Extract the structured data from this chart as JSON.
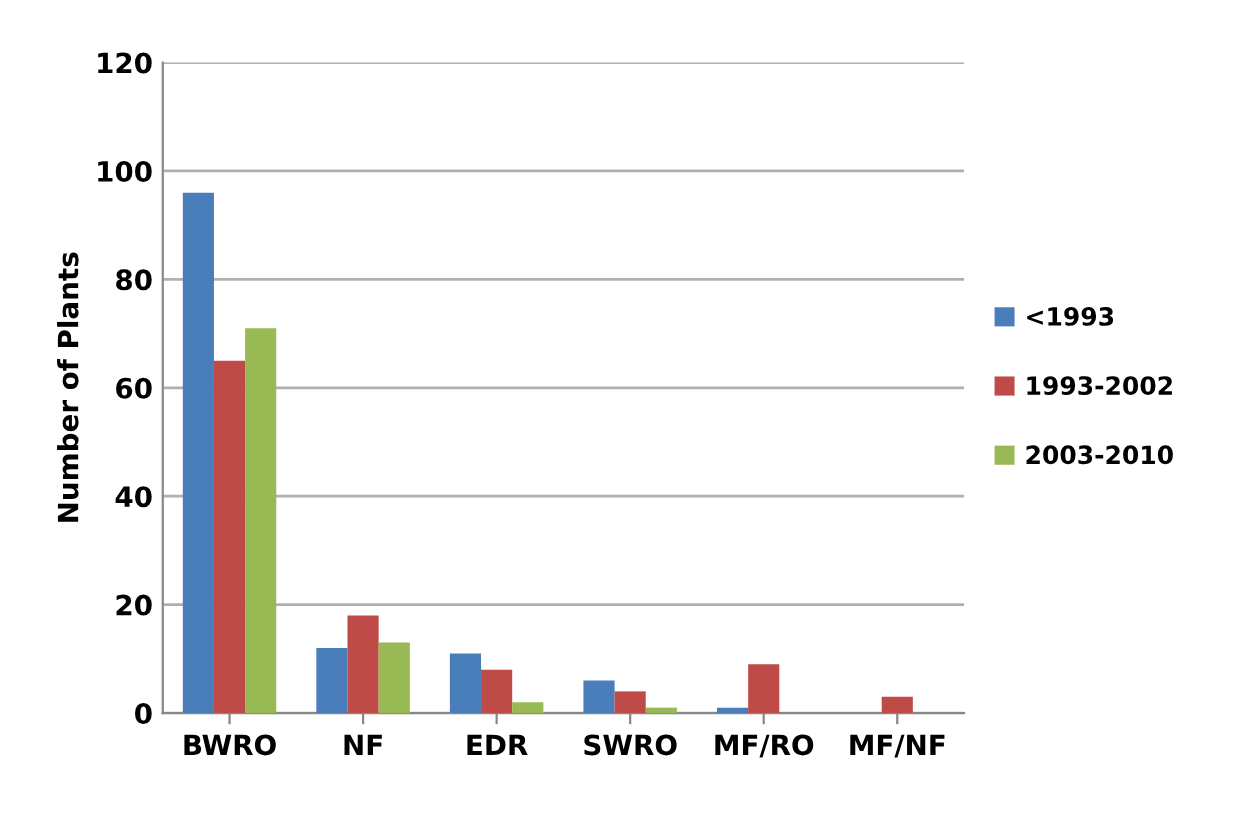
{
  "chart_data": {
    "type": "bar",
    "ylabel": "Number of Plants",
    "categories": [
      "BWRO",
      "NF",
      "EDR",
      "SWRO",
      "MF/RO",
      "MF/NF"
    ],
    "series": [
      {
        "name": "<1993",
        "color": "#4a7ebb",
        "values": [
          96,
          12,
          11,
          6,
          1,
          0
        ]
      },
      {
        "name": "1993-2002",
        "color": "#be4b48",
        "values": [
          65,
          18,
          8,
          4,
          9,
          3
        ]
      },
      {
        "name": "2003-2010",
        "color": "#98b954",
        "values": [
          71,
          13,
          2,
          1,
          0,
          0
        ]
      }
    ],
    "ylim": [
      0,
      120
    ],
    "yticks": [
      0,
      20,
      40,
      60,
      80,
      100,
      120
    ],
    "grid": "y",
    "legend": "right"
  }
}
